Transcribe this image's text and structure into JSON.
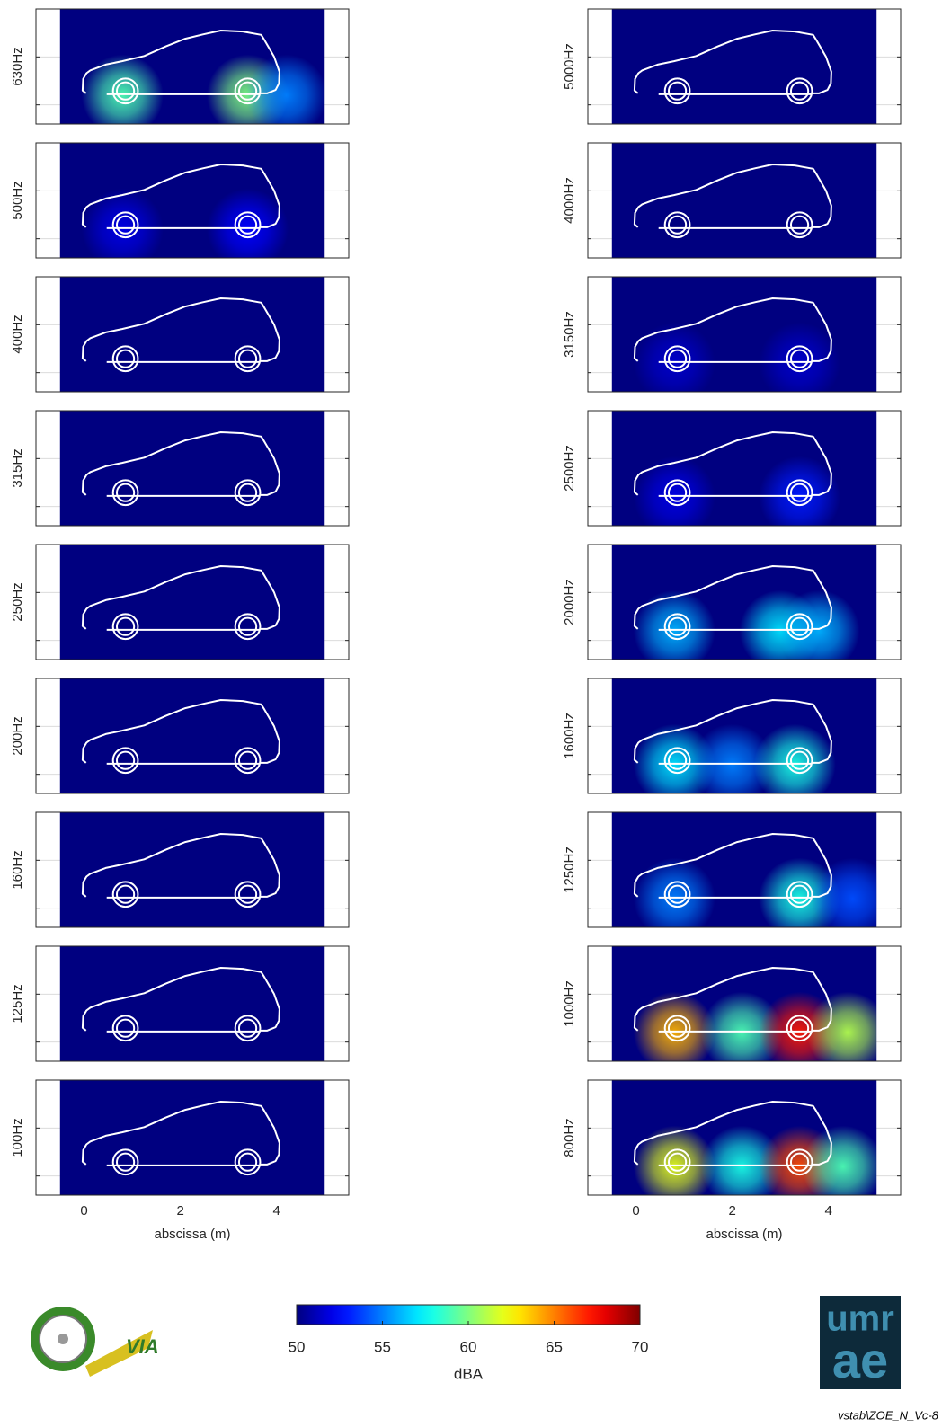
{
  "chart_data": [
    {
      "type": "heatmap",
      "ylabel": "630Hz",
      "xlim": [
        -1,
        5.5
      ],
      "xticks": [
        0,
        2,
        4
      ],
      "ylim": [
        -0.4,
        2
      ],
      "yticks": [
        0,
        1
      ],
      "extent": [
        -0.5,
        5
      ],
      "sources": {
        "x": [
          0.8,
          3.4,
          4.2
        ],
        "values": [
          59,
          60,
          55
        ]
      }
    },
    {
      "type": "heatmap",
      "ylabel": "500Hz",
      "xlim": [
        -1,
        5.5
      ],
      "xticks": [
        0,
        2,
        4
      ],
      "ylim": [
        -0.4,
        2
      ],
      "yticks": [
        0,
        1
      ],
      "extent": [
        -0.5,
        5
      ],
      "sources": {
        "x": [
          0.8,
          3.4
        ],
        "values": [
          52,
          52.5
        ]
      }
    },
    {
      "type": "heatmap",
      "ylabel": "400Hz",
      "xlim": [
        -1,
        5.5
      ],
      "xticks": [
        0,
        2,
        4
      ],
      "ylim": [
        -0.4,
        2
      ],
      "yticks": [
        0,
        1
      ],
      "extent": [
        -0.5,
        5
      ],
      "sources": {
        "x": [],
        "values": []
      }
    },
    {
      "type": "heatmap",
      "ylabel": "315Hz",
      "xlim": [
        -1,
        5.5
      ],
      "xticks": [
        0,
        2,
        4
      ],
      "ylim": [
        -0.4,
        2
      ],
      "yticks": [
        0,
        1
      ],
      "extent": [
        -0.5,
        5
      ],
      "sources": {
        "x": [],
        "values": []
      }
    },
    {
      "type": "heatmap",
      "ylabel": "250Hz",
      "xlim": [
        -1,
        5.5
      ],
      "xticks": [
        0,
        2,
        4
      ],
      "ylim": [
        -0.4,
        2
      ],
      "yticks": [
        0,
        1
      ],
      "extent": [
        -0.5,
        5
      ],
      "sources": {
        "x": [],
        "values": []
      }
    },
    {
      "type": "heatmap",
      "ylabel": "200Hz",
      "xlim": [
        -1,
        5.5
      ],
      "xticks": [
        0,
        2,
        4
      ],
      "ylim": [
        -0.4,
        2
      ],
      "yticks": [
        0,
        1
      ],
      "extent": [
        -0.5,
        5
      ],
      "sources": {
        "x": [],
        "values": []
      }
    },
    {
      "type": "heatmap",
      "ylabel": "160Hz",
      "xlim": [
        -1,
        5.5
      ],
      "xticks": [
        0,
        2,
        4
      ],
      "ylim": [
        -0.4,
        2
      ],
      "yticks": [
        0,
        1
      ],
      "extent": [
        -0.5,
        5
      ],
      "sources": {
        "x": [],
        "values": []
      }
    },
    {
      "type": "heatmap",
      "ylabel": "125Hz",
      "xlim": [
        -1,
        5.5
      ],
      "xticks": [
        0,
        2,
        4
      ],
      "ylim": [
        -0.4,
        2
      ],
      "yticks": [
        0,
        1
      ],
      "extent": [
        -0.5,
        5
      ],
      "sources": {
        "x": [],
        "values": []
      }
    },
    {
      "type": "heatmap",
      "ylabel": "100Hz",
      "xlabel": "abscissa (m)",
      "xlim": [
        -1,
        5.5
      ],
      "xticks": [
        0,
        2,
        4
      ],
      "ylim": [
        -0.4,
        2
      ],
      "yticks": [
        0,
        1
      ],
      "extent": [
        -0.5,
        5
      ],
      "sources": {
        "x": [],
        "values": []
      }
    },
    {
      "type": "heatmap",
      "ylabel": "5000Hz",
      "xlim": [
        -1,
        5.5
      ],
      "xticks": [
        0,
        2,
        4
      ],
      "ylim": [
        -0.4,
        2
      ],
      "yticks": [
        0,
        1
      ],
      "extent": [
        -0.5,
        5
      ],
      "sources": {
        "x": [],
        "values": []
      }
    },
    {
      "type": "heatmap",
      "ylabel": "4000Hz",
      "xlim": [
        -1,
        5.5
      ],
      "xticks": [
        0,
        2,
        4
      ],
      "ylim": [
        -0.4,
        2
      ],
      "yticks": [
        0,
        1
      ],
      "extent": [
        -0.5,
        5
      ],
      "sources": {
        "x": [],
        "values": []
      }
    },
    {
      "type": "heatmap",
      "ylabel": "3150Hz",
      "xlim": [
        -1,
        5.5
      ],
      "xticks": [
        0,
        2,
        4
      ],
      "ylim": [
        -0.4,
        2
      ],
      "yticks": [
        0,
        1
      ],
      "extent": [
        -0.5,
        5
      ],
      "sources": {
        "x": [
          0.8,
          3.4
        ],
        "values": [
          51.5,
          51.5
        ]
      }
    },
    {
      "type": "heatmap",
      "ylabel": "2500Hz",
      "xlim": [
        -1,
        5.5
      ],
      "xticks": [
        0,
        2,
        4
      ],
      "ylim": [
        -0.4,
        2
      ],
      "yticks": [
        0,
        1
      ],
      "extent": [
        -0.5,
        5
      ],
      "sources": {
        "x": [
          0.8,
          3.4
        ],
        "values": [
          52,
          53
        ]
      }
    },
    {
      "type": "heatmap",
      "ylabel": "2000Hz",
      "xlim": [
        -1,
        5.5
      ],
      "xticks": [
        0,
        2,
        4
      ],
      "ylim": [
        -0.4,
        2
      ],
      "yticks": [
        0,
        1
      ],
      "extent": [
        -0.5,
        5
      ],
      "sources": {
        "x": [
          0.8,
          3.0,
          3.8
        ],
        "values": [
          56,
          57,
          56
        ]
      }
    },
    {
      "type": "heatmap",
      "ylabel": "1600Hz",
      "xlabel": null,
      "xlim": [
        -1,
        5.5
      ],
      "xticks": [
        0,
        2,
        4
      ],
      "ylim": [
        -0.4,
        2
      ],
      "yticks": [
        0,
        1
      ],
      "extent": [
        -0.5,
        5
      ],
      "sources": {
        "x": [
          0.8,
          2.0,
          3.3
        ],
        "values": [
          57,
          55,
          58
        ]
      }
    },
    {
      "type": "heatmap",
      "ylabel": "1250Hz",
      "xlim": [
        -1,
        5.5
      ],
      "xticks": [
        0,
        2,
        4
      ],
      "ylim": [
        -0.4,
        2
      ],
      "yticks": [
        0,
        1
      ],
      "extent": [
        -0.5,
        5
      ],
      "sources": {
        "x": [
          0.8,
          3.4,
          4.5
        ],
        "values": [
          55,
          58,
          54
        ]
      }
    },
    {
      "type": "heatmap",
      "ylabel": "1000Hz",
      "xlim": [
        -1,
        5.5
      ],
      "xticks": [
        0,
        2,
        4
      ],
      "ylim": [
        -0.4,
        2
      ],
      "yticks": [
        0,
        1
      ],
      "extent": [
        -0.5,
        5
      ],
      "sources": {
        "x": [
          0.8,
          2.2,
          3.4,
          4.4
        ],
        "values": [
          64,
          59,
          67,
          61
        ]
      }
    },
    {
      "type": "heatmap",
      "ylabel": "800Hz",
      "xlabel": "abscissa (m)",
      "xlim": [
        -1,
        5.5
      ],
      "xticks": [
        0,
        2,
        4
      ],
      "ylim": [
        -0.4,
        2
      ],
      "yticks": [
        0,
        1
      ],
      "extent": [
        -0.5,
        5
      ],
      "sources": {
        "x": [
          0.8,
          2.2,
          3.4,
          4.3
        ],
        "values": [
          62,
          58,
          66,
          59
        ]
      }
    },
    {
      "type": "colorbar",
      "label": "dBA",
      "lim": [
        50,
        70
      ],
      "ticks": [
        50,
        55,
        60,
        65,
        70
      ],
      "colormap": "jet"
    }
  ],
  "logos": {
    "left": "VIA",
    "right_top": "umr",
    "right_bottom": "ae"
  },
  "footer": "vstab\\ZOE_N_Vc-8"
}
